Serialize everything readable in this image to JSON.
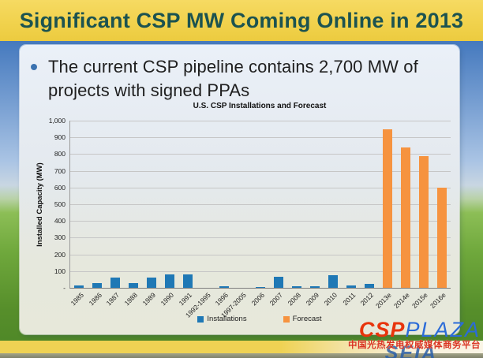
{
  "slide": {
    "title": "Significant CSP MW Coming Online in 2013",
    "bullet": "The current CSP pipeline contains 2,700 MW of projects with signed PPAs"
  },
  "chart_data": {
    "type": "bar",
    "title": "U.S. CSP Installations and Forecast",
    "xlabel": "",
    "ylabel": "Installed Capacity (MW)",
    "ylim": [
      0,
      1000
    ],
    "grid": true,
    "legend_position": "bottom",
    "yticks": [
      "1,000",
      "900",
      "800",
      "700",
      "600",
      "500",
      "400",
      "300",
      "200",
      "100",
      "-"
    ],
    "categories": [
      "1985",
      "1986",
      "1987",
      "1988",
      "1989",
      "1990",
      "1991",
      "1992-1995",
      "1996",
      "1997-2005",
      "2006",
      "2007",
      "2008",
      "2009",
      "2010",
      "2011",
      "2012",
      "2013e",
      "2014e",
      "2015e",
      "2016e"
    ],
    "series": [
      {
        "name": "Installations",
        "color": "#1f78b5",
        "values": [
          14,
          30,
          60,
          30,
          60,
          80,
          80,
          0,
          10,
          0,
          1,
          64,
          8,
          9,
          75,
          12,
          25,
          0,
          0,
          0,
          0
        ]
      },
      {
        "name": "Forecast",
        "color": "#f6933f",
        "values": [
          0,
          0,
          0,
          0,
          0,
          0,
          0,
          0,
          0,
          0,
          0,
          0,
          0,
          0,
          0,
          0,
          0,
          950,
          840,
          790,
          600
        ]
      }
    ]
  },
  "colors": {
    "title_bar": "#f1d24d",
    "title_text": "#1c5350",
    "bar_blue": "#1f78b5",
    "bar_orange": "#f6933f",
    "watermark_red": "#e8340c",
    "watermark_blue": "#2b6bd8"
  },
  "watermark": {
    "csp": "CSP",
    "plaza": "PLAZA",
    "tagline": "中国光热发电权威媒体商务平台",
    "seia": "SEIA"
  }
}
